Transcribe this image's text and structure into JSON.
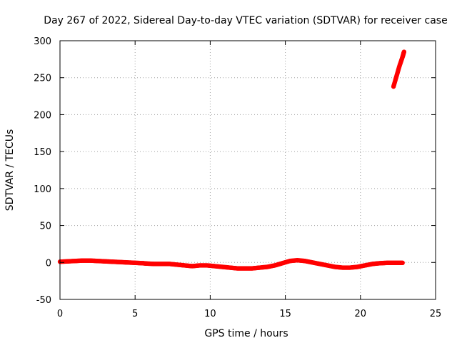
{
  "chart_data": {
    "type": "scatter",
    "title": "Day 267 of 2022, Sidereal Day-to-day VTEC variation (SDTVAR) for receiver case",
    "xlabel": "GPS time / hours",
    "ylabel": "SDTVAR / TECUs",
    "xlim": [
      0,
      25
    ],
    "ylim": [
      -50,
      300
    ],
    "xticks": [
      0,
      5,
      10,
      15,
      20,
      25
    ],
    "yticks": [
      -50,
      0,
      50,
      100,
      150,
      200,
      250,
      300
    ],
    "grid": true,
    "series_color": "#ff0000",
    "series": [
      {
        "name": "SDTVAR",
        "x": [
          0.0,
          0.5,
          1.0,
          1.5,
          2.0,
          2.5,
          3.0,
          3.5,
          4.0,
          4.5,
          5.0,
          5.5,
          5.8,
          6.3,
          6.8,
          7.3,
          7.8,
          8.3,
          8.8,
          9.3,
          9.8,
          10.3,
          10.8,
          11.3,
          11.8,
          12.3,
          12.8,
          13.3,
          13.8,
          14.3,
          14.8,
          15.3,
          15.8,
          16.3,
          16.8,
          17.3,
          17.8,
          18.3,
          18.8,
          19.3,
          19.8,
          20.3,
          20.8,
          21.3,
          21.8,
          22.3,
          22.8,
          22.2,
          22.4,
          22.6,
          22.8,
          22.9
        ],
        "y": [
          1,
          1.5,
          2,
          2.5,
          2.5,
          2,
          1.5,
          1,
          0.5,
          0,
          -0.5,
          -1,
          -1.5,
          -2,
          -2,
          -2,
          -3,
          -4,
          -5,
          -4,
          -4,
          -5,
          -6,
          -7,
          -8,
          -8,
          -8,
          -7,
          -6,
          -4,
          -1,
          2,
          3,
          2,
          0,
          -2,
          -4,
          -6,
          -7,
          -7,
          -6,
          -4,
          -2,
          -1,
          -0.5,
          -0.5,
          -0.5,
          238,
          252,
          266,
          278,
          285
        ]
      }
    ]
  }
}
